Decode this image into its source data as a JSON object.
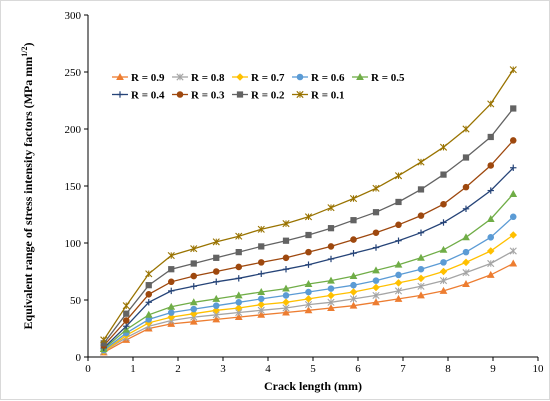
{
  "chart_data": {
    "type": "line",
    "xlabel": "Crack length (mm)",
    "ylabel": "Equivalent range of stress intensity factors (MPa mm",
    "ylabel_sup": "1/2",
    "ylabel_close": ")",
    "xlim": [
      0,
      10
    ],
    "ylim": [
      0,
      300
    ],
    "xticks": [
      0,
      1,
      2,
      3,
      4,
      5,
      6,
      7,
      8,
      9,
      10
    ],
    "yticks": [
      0,
      50,
      100,
      150,
      200,
      250,
      300
    ],
    "grid": false,
    "legend_position": "top-left inside plot, 4 rows",
    "x": [
      0.35,
      0.85,
      1.35,
      1.85,
      2.35,
      2.85,
      3.35,
      3.85,
      4.4,
      4.9,
      5.4,
      5.9,
      6.4,
      6.9,
      7.4,
      7.9,
      8.4,
      8.95,
      9.45
    ],
    "series": [
      {
        "name": "R = 0.9",
        "color": "#ED7D31",
        "marker": "triangle",
        "values": [
          4,
          15,
          25,
          29,
          31,
          33,
          35,
          37,
          39,
          41,
          43,
          45,
          48,
          51,
          54,
          58,
          64,
          72,
          82
        ]
      },
      {
        "name": "R = 0.8",
        "color": "#A5A5A5",
        "marker": "asterisk",
        "values": [
          5,
          17,
          27,
          32,
          35,
          37,
          39,
          41,
          43,
          46,
          48,
          51,
          54,
          58,
          62,
          67,
          74,
          82,
          93
        ]
      },
      {
        "name": "R = 0.7",
        "color": "#FFC000",
        "marker": "diamond",
        "values": [
          5,
          19,
          30,
          35,
          38,
          41,
          43,
          46,
          48,
          51,
          54,
          57,
          61,
          65,
          69,
          75,
          83,
          93,
          107
        ]
      },
      {
        "name": "R = 0.6",
        "color": "#5B9BD5",
        "marker": "circle",
        "values": [
          6,
          21,
          33,
          39,
          42,
          45,
          48,
          51,
          54,
          57,
          60,
          63,
          67,
          72,
          77,
          83,
          92,
          105,
          123
        ]
      },
      {
        "name": "R = 0.5",
        "color": "#70AD47",
        "marker": "triangle",
        "values": [
          7,
          24,
          37,
          44,
          48,
          51,
          54,
          57,
          60,
          64,
          67,
          71,
          76,
          81,
          87,
          94,
          105,
          121,
          143
        ]
      },
      {
        "name": "R = 0.4",
        "color": "#264478",
        "marker": "plus",
        "values": [
          8,
          27,
          48,
          58,
          62,
          66,
          69,
          73,
          77,
          81,
          86,
          91,
          96,
          102,
          109,
          118,
          130,
          146,
          166
        ]
      },
      {
        "name": "R = 0.3",
        "color": "#9E480E",
        "marker": "circle",
        "values": [
          10,
          32,
          55,
          66,
          71,
          75,
          79,
          83,
          87,
          92,
          97,
          103,
          109,
          116,
          124,
          134,
          149,
          168,
          190
        ]
      },
      {
        "name": "R = 0.2",
        "color": "#636363",
        "marker": "square",
        "values": [
          12,
          38,
          63,
          77,
          82,
          87,
          92,
          97,
          102,
          107,
          113,
          120,
          127,
          136,
          147,
          160,
          175,
          193,
          218
        ]
      },
      {
        "name": "R = 0.1",
        "color": "#997300",
        "marker": "asterisk",
        "values": [
          15,
          45,
          73,
          89,
          95,
          101,
          106,
          112,
          117,
          123,
          131,
          139,
          148,
          159,
          171,
          184,
          200,
          222,
          252
        ]
      }
    ]
  }
}
